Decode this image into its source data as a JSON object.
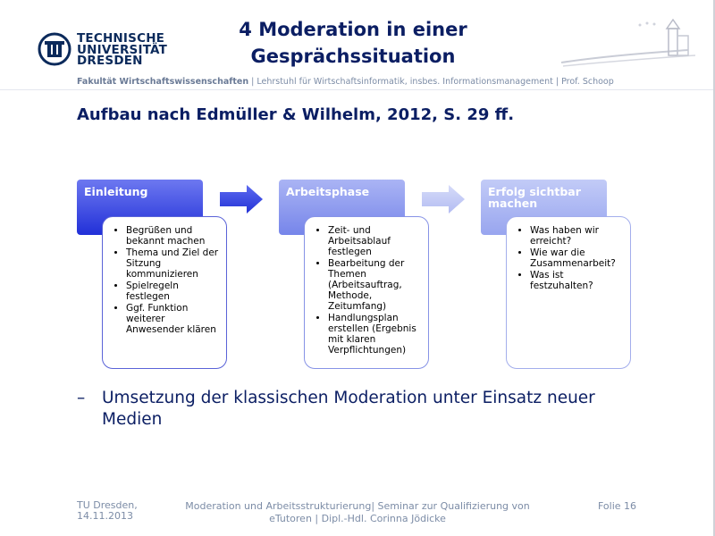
{
  "logo": {
    "line1": "TECHNISCHE",
    "line2": "UNIVERSITÄT",
    "line3": "DRESDEN"
  },
  "title": {
    "line1": "4 Moderation in einer",
    "line2": "Gesprächssituation"
  },
  "faculty": {
    "bold": "Fakultät Wirtschaftswissenschaften",
    "rest": " | Lehrstuhl für Wirtschaftsinformatik, insbes. Informationsmanagement | Prof. Schoop"
  },
  "heading": "Aufbau nach Edmüller & Wilhelm, 2012, S. 29 ff.",
  "stages": [
    {
      "title": "Einleitung",
      "items": [
        "Begrüßen und bekannt machen",
        "Thema und Ziel der Sitzung kommunizieren",
        "Spielregeln festlegen",
        "Ggf. Funktion weiterer Anwesender klären"
      ]
    },
    {
      "title": "Arbeitsphase",
      "items": [
        "Zeit- und Arbeitsablauf festlegen",
        "Bearbeitung der Themen (Arbeitsauftrag, Methode, Zeitumfang)",
        "Handlungsplan erstellen (Ergebnis mit klaren Verpflichtungen)"
      ]
    },
    {
      "title": "Erfolg sichtbar machen",
      "items": [
        "Was haben wir erreicht?",
        "Wie war die Zusammenarbeit?",
        "Was ist festzuhalten?"
      ]
    }
  ],
  "bullet": {
    "dash": "–",
    "text": "Umsetzung der klassischen Moderation unter Einsatz neuer Medien"
  },
  "footer": {
    "left1": "TU Dresden,",
    "left2": "14.11.2013",
    "center": "Moderation und Arbeitsstrukturierung| Seminar zur Qualifizierung von eTutoren | Dipl.-Hdl. Corinna Jödicke",
    "right": "Folie 16"
  },
  "colors": {
    "primary": "#0b1e63",
    "stage1": "#2130d8",
    "stage2": "#7685ea",
    "stage3": "#98a5ef",
    "footer": "#7c8ca6"
  }
}
